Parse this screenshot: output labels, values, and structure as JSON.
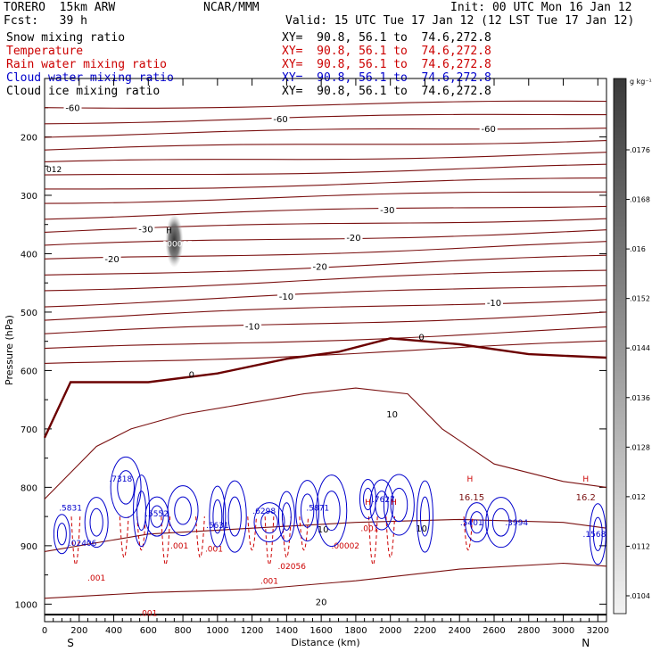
{
  "header": {
    "model": "TORERO  15km ARW",
    "org": "NCAR/MMM",
    "init": "Init: 00 UTC Mon 16 Jan 12",
    "fcst": "Fcst:   39 h",
    "valid": "Valid: 15 UTC Tue 17 Jan 12 (12 LST Tue 17 Jan 12)"
  },
  "fields": [
    {
      "name": "Snow mixing ratio",
      "xy": "XY=  90.8, 56.1 to  74.6,272.8",
      "color": "#000000"
    },
    {
      "name": "Temperature",
      "xy": "XY=  90.8, 56.1 to  74.6,272.8",
      "color": "#cc0000"
    },
    {
      "name": "Rain water mixing ratio",
      "xy": "XY=  90.8, 56.1 to  74.6,272.8",
      "color": "#cc0000"
    },
    {
      "name": "Cloud water mixing ratio",
      "xy": "XY=  90.8, 56.1 to  74.6,272.8",
      "color": "#0000cc"
    },
    {
      "name": "Cloud ice mixing ratio",
      "xy": "XY=  90.8, 56.1 to  74.6,272.8",
      "color": "#000000"
    }
  ],
  "chart_data": {
    "type": "contour",
    "xlabel": "Distance (km)",
    "ylabel": "Pressure (hPa)",
    "xlim": [
      0,
      3250
    ],
    "ylim": [
      1030,
      100
    ],
    "x_ticks": [
      0,
      200,
      400,
      600,
      800,
      1000,
      1200,
      1400,
      1600,
      1800,
      2000,
      2200,
      2400,
      2600,
      2800,
      3000,
      3200
    ],
    "y_ticks": [
      200,
      300,
      400,
      500,
      600,
      700,
      800,
      900,
      1000
    ],
    "x_end_labels": [
      "S",
      "N"
    ],
    "colorbar": {
      "unit": "g kg⁻¹",
      "ticks": [
        ".0176",
        ".0168",
        ".016",
        ".0152",
        ".0144",
        ".0136",
        ".0128",
        ".012",
        ".0112",
        ".0104"
      ]
    },
    "temperature_contours": [
      {
        "label": "-60",
        "p0": 150,
        "p1": 140
      },
      {
        "label": "-60",
        "p0": 175,
        "p1": 160
      },
      {
        "label": "-60",
        "p0": 198,
        "p1": 182
      },
      {
        "label": "",
        "p0": 222,
        "p1": 205
      },
      {
        "label": "",
        "p0": 245,
        "p1": 228
      },
      {
        "label": "",
        "p0": 268,
        "p1": 250
      },
      {
        "label": "",
        "p0": 290,
        "p1": 272
      },
      {
        "label": "",
        "p0": 312,
        "p1": 293
      },
      {
        "label": "-30",
        "p0": 338,
        "p1": 316
      },
      {
        "label": "-30",
        "p0": 362,
        "p1": 338
      },
      {
        "label": "-20",
        "p0": 387,
        "p1": 360
      },
      {
        "label": "-20",
        "p0": 412,
        "p1": 382
      },
      {
        "label": "-20",
        "p0": 438,
        "p1": 405
      },
      {
        "label": "",
        "p0": 462,
        "p1": 428
      },
      {
        "label": "-10",
        "p0": 488,
        "p1": 452
      },
      {
        "label": "-10",
        "p0": 512,
        "p1": 476
      },
      {
        "label": "-10",
        "p0": 538,
        "p1": 500
      },
      {
        "label": "",
        "p0": 565,
        "p1": 528
      },
      {
        "label": "",
        "p0": 590,
        "p1": 552
      }
    ],
    "freezing_level_label": "0",
    "contour_labels_lower": [
      "10",
      "10",
      "10",
      "20",
      "16.15",
      "16.2"
    ],
    "rain_labels": [
      ".001",
      ".001",
      ".001",
      ".001",
      ".001",
      ".001",
      ".02056",
      ".00002"
    ],
    "cloud_labels": [
      ".7318",
      ".5831",
      ".5631",
      ".5552",
      ".6298",
      ".5871",
      ".7627",
      ".5401",
      ".3994",
      ".1568",
      ".02406"
    ],
    "snow_max_label": ".000085",
    "left_label": "012",
    "high_marker": "H"
  }
}
